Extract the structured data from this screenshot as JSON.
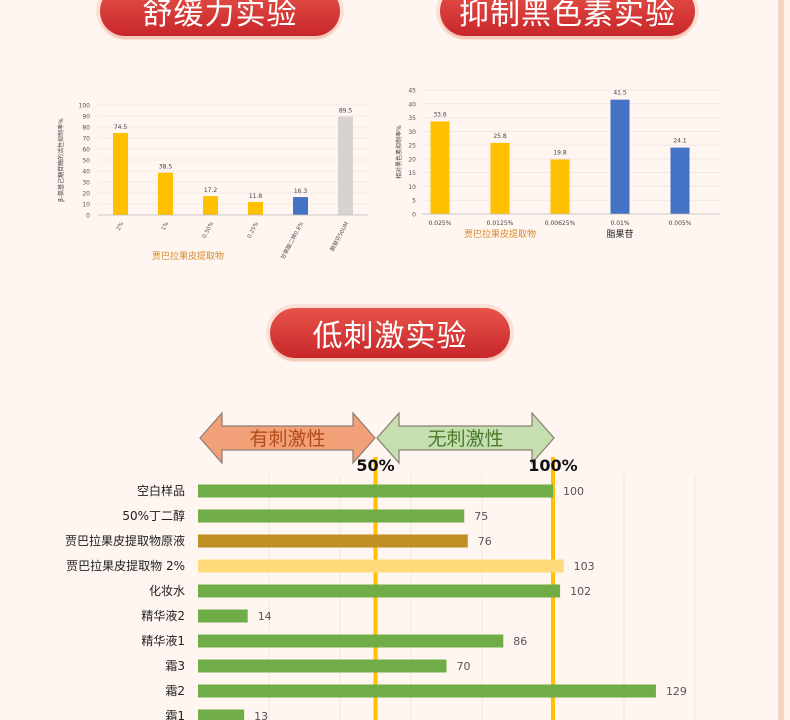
{
  "banners": {
    "soothing": "舒缓力实验",
    "melanin": "抑制黑色素实验",
    "irritation": "低刺激实验"
  },
  "colors": {
    "yellow": "#ffc000",
    "blue": "#4472c4",
    "gray": "#d9d3cf",
    "green": "#70ad47",
    "brown": "#bf8f24",
    "light_yellow": "#ffd97a",
    "guide": "#ffc000",
    "orange_arrow": "#f2a078",
    "green_arrow": "#c5dfb0"
  },
  "chart_data": [
    {
      "type": "bar",
      "ylabel": "β-氨基己糖苷酶的活性抑制率%",
      "ylim": [
        0,
        100
      ],
      "yticks": [
        0,
        10,
        20,
        30,
        40,
        50,
        60,
        70,
        80,
        90,
        100
      ],
      "categories": [
        "2%",
        "1%",
        "0.50%",
        "0.25%",
        "甘草酸二钾0.8%",
        "酮替芬50UM"
      ],
      "values": [
        74.5,
        38.5,
        17.2,
        11.8,
        16.3,
        89.5
      ],
      "value_labels": [
        "74.5",
        "38.5",
        "17.2",
        "11.8",
        "16.3",
        "89.5"
      ],
      "bar_colors": [
        "yellow",
        "yellow",
        "yellow",
        "yellow",
        "blue",
        "gray"
      ],
      "group_label": "贾巴拉果皮提取物",
      "grid": true
    },
    {
      "type": "bar",
      "ylabel": "相对黑色素抑制率%",
      "ylim": [
        0,
        45
      ],
      "yticks": [
        0,
        5,
        10,
        15,
        20,
        25,
        30,
        35,
        40,
        45
      ],
      "categories": [
        "0.025%",
        "0.0125%",
        "0.00625%",
        "0.01%",
        "0.005%"
      ],
      "values": [
        33.6,
        25.8,
        19.8,
        41.5,
        24.1
      ],
      "value_labels": [
        "33.6",
        "25.8",
        "19.8",
        "41.5",
        "24.1"
      ],
      "bar_colors": [
        "yellow",
        "yellow",
        "yellow",
        "blue",
        "blue"
      ],
      "group_labels": [
        "贾巴拉果皮提取物",
        "脂果苷"
      ],
      "grid": true
    },
    {
      "type": "bar",
      "orientation": "horizontal",
      "categories": [
        "空白样品",
        "50%丁二醇",
        "贾巴拉果皮提取物原液",
        "贾巴拉果皮提取物 2%",
        "化妆水",
        "精华液2",
        "精华液1",
        "霜3",
        "霜2",
        "霜1"
      ],
      "values": [
        100,
        75,
        76,
        103,
        102,
        14,
        86,
        70,
        129,
        13
      ],
      "value_labels": [
        "100",
        "75",
        "76",
        "103",
        "102",
        "14",
        "86",
        "70",
        "129",
        "13"
      ],
      "bar_colors": [
        "green",
        "green",
        "brown",
        "light_yellow",
        "green",
        "green",
        "green",
        "green",
        "green",
        "green"
      ],
      "guide_lines": [
        {
          "value": 50,
          "label": "50%"
        },
        {
          "value": 100,
          "label": "100%"
        }
      ],
      "regions": [
        {
          "label": "有刺激性",
          "color": "orange_arrow"
        },
        {
          "label": "无刺激性",
          "color": "green_arrow"
        }
      ],
      "xlim": [
        0,
        140
      ],
      "grid": true
    }
  ]
}
